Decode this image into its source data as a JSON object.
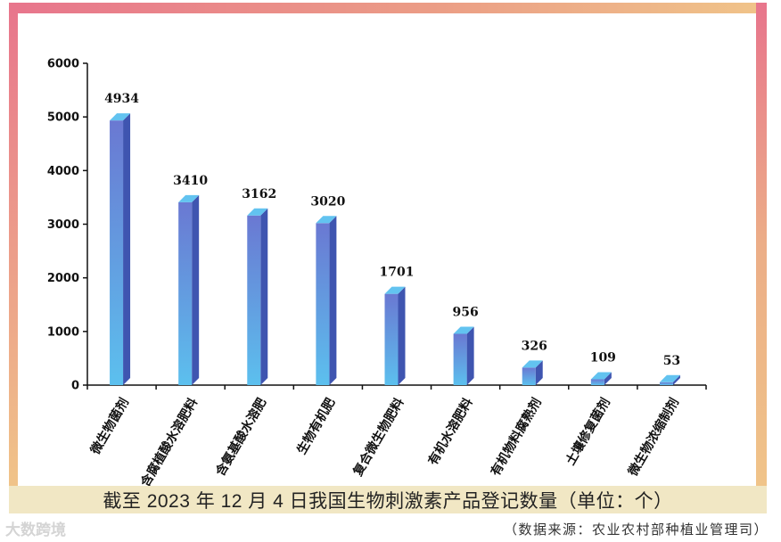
{
  "chart_data": {
    "type": "bar",
    "categories": [
      "微生物菌剂",
      "含腐植酸水溶肥料",
      "含氨基酸水溶肥",
      "生物有机肥",
      "复合微生物肥料",
      "有机水溶肥料",
      "有机物料腐熟剂",
      "土壤修复菌剂",
      "微生物浓缩制剂"
    ],
    "values": [
      4934,
      3410,
      3162,
      3020,
      1701,
      956,
      326,
      109,
      53
    ],
    "value_labels": [
      "4934",
      "3410",
      "3162",
      "3020",
      "1701",
      "956",
      "326",
      "109",
      "53"
    ],
    "yticks": [
      "0",
      "1000",
      "2000",
      "3000",
      "4000",
      "5000",
      "6000"
    ],
    "ylim": [
      0,
      6000
    ],
    "title": "截至 2023 年 12 月 4 日我国生物刺激素产品登记数量（单位：个）",
    "xlabel": "",
    "ylabel": "",
    "grid": false,
    "colors": {
      "bar_front_top": "#6a78d2",
      "bar_front_bottom": "#5cc0ee",
      "bar_side": "#3f55b0",
      "bar_top": "#62c3f0"
    }
  },
  "caption": "截至 2023 年 12 月 4 日我国生物刺激素产品登记数量（单位：个）",
  "source_note": "（数据来源：农业农村部种植业管理司）",
  "watermark": "大数跨境"
}
